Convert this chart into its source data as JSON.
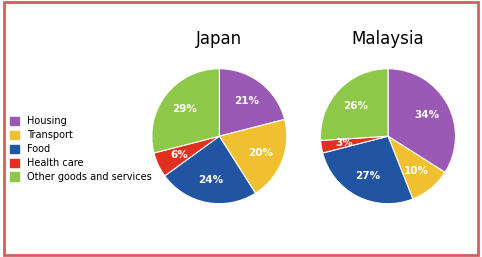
{
  "japan_title": "Japan",
  "malaysia_title": "Malaysia",
  "categories": [
    "Housing",
    "Transport",
    "Food",
    "Health care",
    "Other goods and services"
  ],
  "colors": [
    "#9b59b6",
    "#f0c030",
    "#2155a3",
    "#e03020",
    "#8dc848"
  ],
  "japan_values": [
    21,
    20,
    24,
    6,
    29
  ],
  "malaysia_values": [
    34,
    10,
    27,
    3,
    26
  ],
  "japan_labels": [
    "21%",
    "20%",
    "24%",
    "6%",
    "29%"
  ],
  "malaysia_labels": [
    "34%",
    "10%",
    "27%",
    "3%",
    "26%"
  ],
  "background_color": "#ffffff",
  "border_color": "#d06060",
  "label_fontsize": 7.5,
  "title_fontsize": 12,
  "legend_fontsize": 7,
  "startangle": 90
}
